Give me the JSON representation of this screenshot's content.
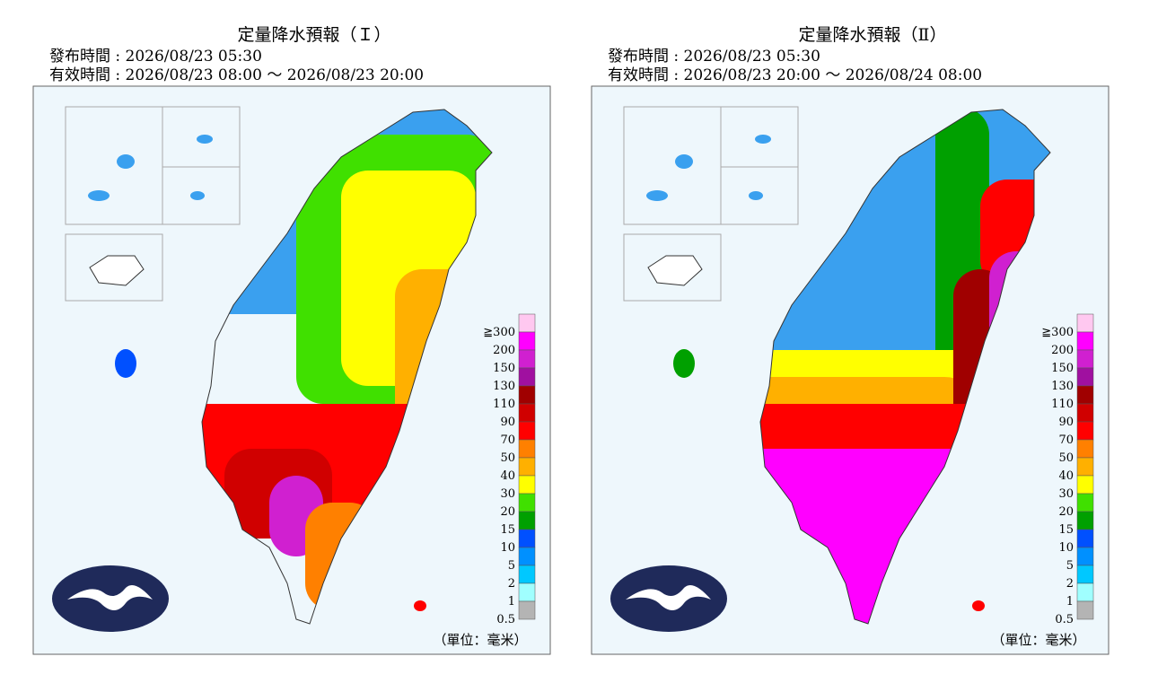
{
  "panels": [
    {
      "title": "定量降水預報（Ｉ）",
      "issued": "發布時間 : 2026/08/23 05:30",
      "valid": "有效時間 : 2026/08/23 08:00 ～ 2026/08/23 20:00",
      "unit": "（單位：毫米）"
    },
    {
      "title": "定量降水預報（Ⅱ）",
      "issued": "發布時間 : 2026/08/23 05:30",
      "valid": "有效時間 : 2026/08/23 20:00 ～ 2026/08/24 08:00",
      "unit": "（單位：毫米）"
    }
  ],
  "legend": [
    {
      "label": "≧300",
      "color": "#ffc8f0"
    },
    {
      "label": "200",
      "color": "#ff00ff"
    },
    {
      "label": "150",
      "color": "#d020d0"
    },
    {
      "label": "130",
      "color": "#a010a0"
    },
    {
      "label": "110",
      "color": "#a00000"
    },
    {
      "label": "90",
      "color": "#d00000"
    },
    {
      "label": "70",
      "color": "#ff0000"
    },
    {
      "label": "50",
      "color": "#ff8000"
    },
    {
      "label": "40",
      "color": "#ffb000"
    },
    {
      "label": "30",
      "color": "#ffff00"
    },
    {
      "label": "20",
      "color": "#40e000"
    },
    {
      "label": "15",
      "color": "#00a000"
    },
    {
      "label": "10",
      "color": "#0050ff"
    },
    {
      "label": "5",
      "color": "#0090ff"
    },
    {
      "label": "2",
      "color": "#00c8ff"
    },
    {
      "label": "1",
      "color": "#a0ffff"
    },
    {
      "label": "0.5",
      "color": "#b4b4b4"
    }
  ]
}
